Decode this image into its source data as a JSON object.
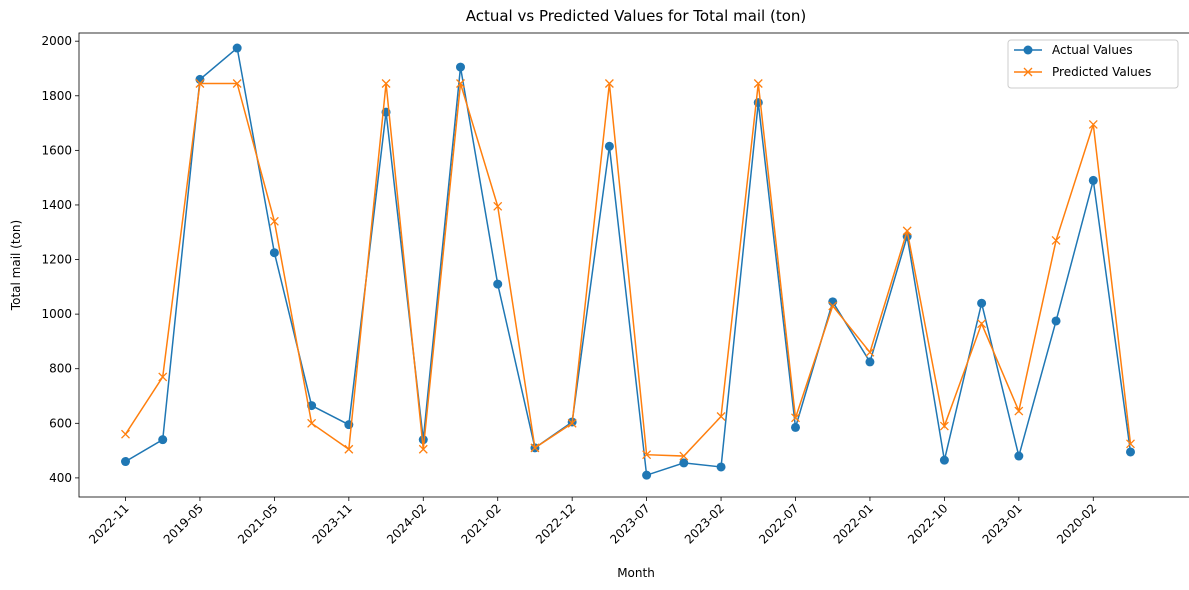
{
  "chart_data": {
    "type": "line",
    "title": "Actual vs Predicted Values for Total mail (ton)",
    "xlabel": "Month",
    "ylabel": "Total mail (ton)",
    "ylim": [
      330,
      2030
    ],
    "yticks": [
      400,
      600,
      800,
      1000,
      1200,
      1400,
      1600,
      1800,
      2000
    ],
    "x_tick_labels": [
      "2022-11",
      "2019-05",
      "2021-05",
      "2023-11",
      "2024-02",
      "2021-02",
      "2022-12",
      "2023-07",
      "2023-02",
      "2022-07",
      "2022-01",
      "2022-10",
      "2023-01",
      "2020-02"
    ],
    "legend_position": "top-right",
    "grid": false,
    "series": [
      {
        "name": "Actual Values",
        "color": "#1f77b4",
        "marker": "circle",
        "values": [
          460,
          540,
          1860,
          1975,
          1225,
          665,
          595,
          1740,
          540,
          1905,
          1110,
          510,
          605,
          1615,
          410,
          455,
          440,
          1775,
          585,
          1045,
          825,
          1285,
          465,
          1040,
          480,
          975,
          1490,
          495
        ]
      },
      {
        "name": "Predicted Values",
        "color": "#ff7f0e",
        "marker": "x",
        "values": [
          560,
          770,
          1845,
          1845,
          1340,
          600,
          505,
          1845,
          505,
          1845,
          1395,
          510,
          600,
          1845,
          485,
          480,
          625,
          1845,
          620,
          1030,
          860,
          1305,
          590,
          965,
          645,
          1270,
          1695,
          525
        ]
      }
    ]
  }
}
